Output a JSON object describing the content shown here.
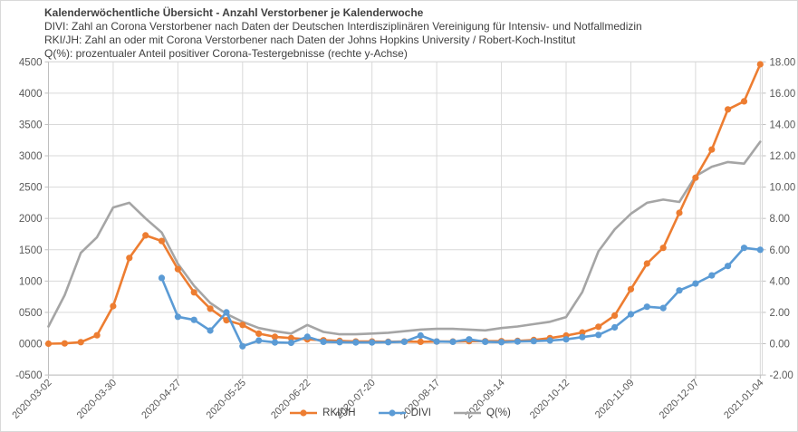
{
  "title": {
    "line1": "Kalenderwöchentliche Übersicht - Anzahl Verstorbener je Kalenderwoche",
    "line2": "DIVI: Zahl an Corona Verstorbener nach Daten der Deutschen Interdisziplinären Vereinigung für Intensiv- und Notfallmedizin",
    "line3": "RKI/JH: Zahl an oder mit Corona  Verstorbener nach Daten der Johns Hopkins University / Robert-Koch-Institut",
    "line4": "Q(%): prozentualer Anteil positiver Corona-Testergebnisse (rechte y-Achse)"
  },
  "chart_data": {
    "type": "line",
    "x": [
      "2020-03-02",
      "2020-03-09",
      "2020-03-16",
      "2020-03-23",
      "2020-03-30",
      "2020-04-06",
      "2020-04-13",
      "2020-04-20",
      "2020-04-27",
      "2020-05-04",
      "2020-05-11",
      "2020-05-18",
      "2020-05-25",
      "2020-06-01",
      "2020-06-08",
      "2020-06-15",
      "2020-06-22",
      "2020-06-29",
      "2020-07-06",
      "2020-07-13",
      "2020-07-20",
      "2020-07-27",
      "2020-08-03",
      "2020-08-10",
      "2020-08-17",
      "2020-08-24",
      "2020-08-31",
      "2020-09-07",
      "2020-09-14",
      "2020-09-21",
      "2020-09-28",
      "2020-10-05",
      "2020-10-12",
      "2020-10-19",
      "2020-10-26",
      "2020-11-02",
      "2020-11-09",
      "2020-11-16",
      "2020-11-23",
      "2020-11-30",
      "2020-12-07",
      "2020-12-14",
      "2020-12-21",
      "2020-12-28",
      "2021-01-04"
    ],
    "x_tick_labels": [
      "2020-03-02",
      "2020-03-30",
      "2020-04-27",
      "2020-05-25",
      "2020-06-22",
      "2020-07-20",
      "2020-08-17",
      "2020-09-14",
      "2020-10-12",
      "2020-11-09",
      "2020-12-07",
      "2021-01-04"
    ],
    "series": [
      {
        "name": "RKI/JH",
        "color": "#ED7D31",
        "axis": "left",
        "marker": true,
        "values": [
          0,
          5,
          25,
          135,
          600,
          1370,
          1730,
          1640,
          1190,
          820,
          560,
          375,
          300,
          160,
          110,
          90,
          70,
          55,
          45,
          35,
          35,
          30,
          35,
          30,
          35,
          35,
          40,
          40,
          40,
          45,
          60,
          90,
          130,
          180,
          270,
          450,
          870,
          1280,
          1530,
          2090,
          2650,
          3100,
          3740,
          3870,
          4460
        ]
      },
      {
        "name": "DIVI",
        "color": "#5B9BD5",
        "axis": "left",
        "marker": true,
        "values": [
          null,
          null,
          null,
          null,
          null,
          null,
          null,
          1050,
          430,
          380,
          210,
          500,
          -40,
          50,
          20,
          15,
          110,
          30,
          25,
          20,
          20,
          25,
          30,
          130,
          35,
          30,
          70,
          30,
          25,
          35,
          40,
          50,
          70,
          105,
          140,
          260,
          470,
          590,
          570,
          850,
          960,
          1090,
          1240,
          1530,
          1500
        ]
      },
      {
        "name": "Q(%)",
        "color": "#A5A5A5",
        "axis": "right",
        "marker": false,
        "values": [
          1.1,
          3.1,
          5.8,
          6.8,
          8.7,
          9.0,
          8.0,
          7.1,
          5.1,
          3.7,
          2.6,
          1.9,
          1.4,
          1.0,
          0.8,
          0.65,
          1.2,
          0.75,
          0.6,
          0.6,
          0.65,
          0.7,
          0.8,
          0.9,
          0.95,
          0.95,
          0.9,
          0.85,
          1.0,
          1.1,
          1.25,
          1.4,
          1.7,
          3.3,
          5.9,
          7.3,
          8.3,
          9.0,
          9.2,
          9.05,
          10.7,
          11.3,
          11.6,
          11.5,
          12.9
        ]
      }
    ],
    "left_axis": {
      "min": -500,
      "max": 4500,
      "step": 500,
      "tick_labels": [
        "-0500",
        "0000",
        "0500",
        "1000",
        "1500",
        "2000",
        "2500",
        "3000",
        "3500",
        "4000",
        "4500"
      ]
    },
    "right_axis": {
      "min": -2,
      "max": 18,
      "step": 2,
      "tick_labels": [
        "-2.00",
        "0.00",
        "2.00",
        "4.00",
        "6.00",
        "8.00",
        "10.00",
        "12.00",
        "14.00",
        "16.00",
        "18.00"
      ]
    },
    "grid": true,
    "legend_position": "bottom"
  },
  "colors": {
    "grid": "#d9d9d9",
    "axis_line": "#bfbfbf",
    "tick_label": "#595959",
    "title_text": "#404040"
  }
}
